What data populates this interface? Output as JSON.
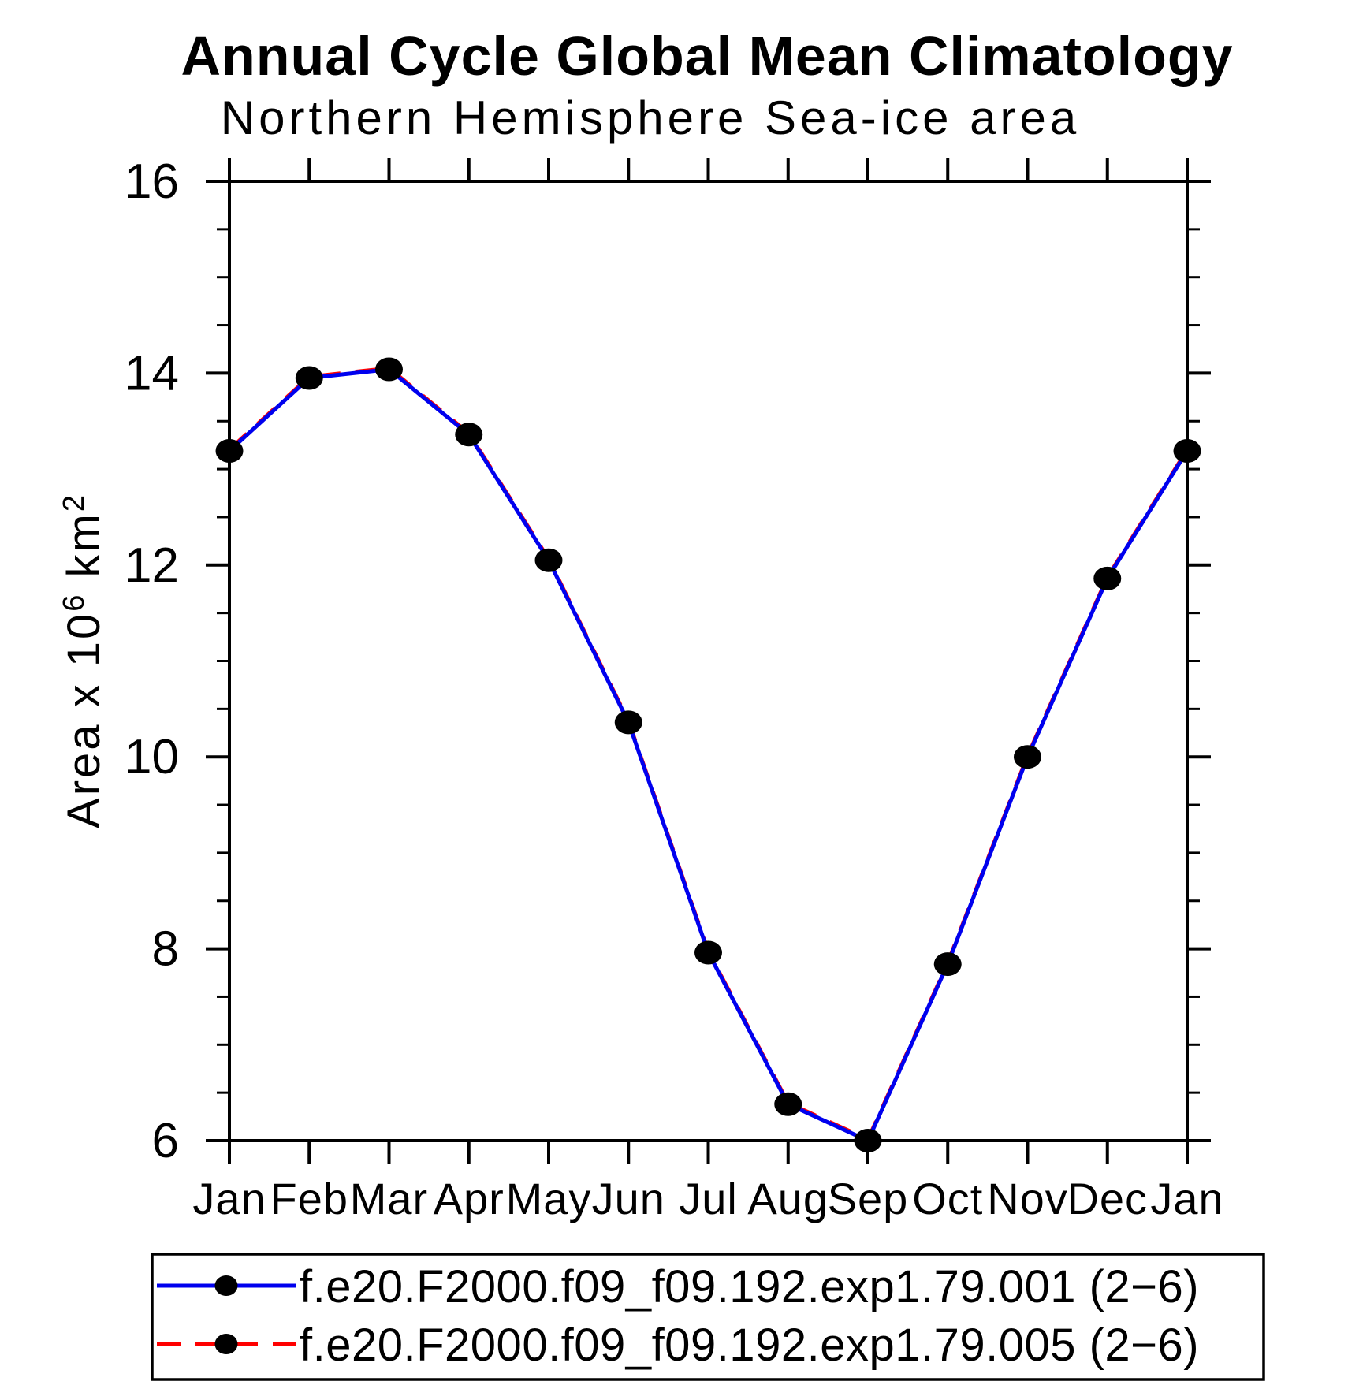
{
  "header": {
    "title": "Annual Cycle Global Mean Climatology",
    "subtitle": "Northern Hemisphere Sea-ice area"
  },
  "y_axis": {
    "label": "Area x 10⁶ km²",
    "label_parts": {
      "base1": "Area x 10",
      "sup1": "6",
      "base2": " km",
      "sup2": "2"
    },
    "major_tick_labels": [
      "16",
      "14",
      "12",
      "10",
      "8",
      "6"
    ]
  },
  "x_axis": {
    "tick_labels": [
      "Jan",
      "Feb",
      "Mar",
      "Apr",
      "May",
      "Jun",
      "Jul",
      "Aug",
      "Sep",
      "Oct",
      "Nov",
      "Dec",
      "Jan"
    ]
  },
  "chart_data": {
    "type": "line",
    "title": "Annual Cycle Global Mean Climatology",
    "subtitle": "Northern Hemisphere Sea-ice area",
    "categories": [
      "Jan",
      "Feb",
      "Mar",
      "Apr",
      "May",
      "Jun",
      "Jul",
      "Aug",
      "Sep",
      "Oct",
      "Nov",
      "Dec",
      "Jan"
    ],
    "xlabel": "",
    "ylabel": "Area x 10⁶ km²",
    "ylim": [
      6,
      16
    ],
    "ytick_major_interval": 2,
    "ytick_minor_interval": 0.5,
    "grid": false,
    "legend_position": "bottom",
    "marker": "filled-black-circle",
    "series": [
      {
        "name": "f.e20.F2000.f09_f09.192.exp1.79.001 (2−6)",
        "color": "#0000ee",
        "line_style": "solid",
        "values": [
          13.19,
          13.95,
          14.04,
          13.36,
          12.05,
          10.36,
          7.96,
          6.38,
          6.0,
          7.84,
          10.0,
          11.86,
          13.19
        ]
      },
      {
        "name": "f.e20.F2000.f09_f09.192.exp1.79.005 (2−6)",
        "color": "#ff0000",
        "line_style": "dashed",
        "values": [
          13.19,
          13.95,
          14.04,
          13.36,
          12.05,
          10.36,
          7.96,
          6.38,
          6.0,
          7.84,
          10.0,
          11.86,
          13.19
        ]
      }
    ]
  },
  "colors": {
    "series1": "#0000ee",
    "series2": "#ff0000",
    "axis": "#000000",
    "background": "#ffffff"
  }
}
